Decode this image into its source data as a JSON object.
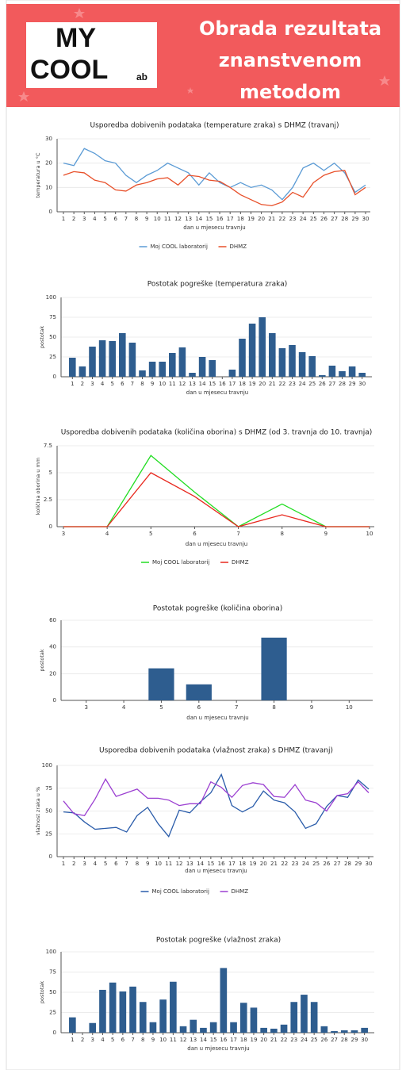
{
  "header": {
    "logo": [
      "MY",
      "COOL",
      "ab"
    ],
    "title_lines": [
      "Obrada rezultata",
      "znanstvenom",
      "metodom"
    ]
  },
  "chart_data": [
    {
      "type": "line",
      "title": "Usporedba dobivenih podataka (temperature zraka) s DHMZ (travanj)",
      "x_label": "dan u mjesecu travnju",
      "y_label": "temperatura u °C",
      "categories": [
        "1",
        "2",
        "3",
        "4",
        "5",
        "6",
        "7",
        "8",
        "9",
        "10",
        "11",
        "12",
        "13",
        "14",
        "15",
        "16",
        "17",
        "18",
        "19",
        "20",
        "21",
        "22",
        "23",
        "24",
        "25",
        "26",
        "27",
        "28",
        "29",
        "30"
      ],
      "series": [
        {
          "name": "Moj COOL laboratorij",
          "color": "#5b9bd5",
          "values": [
            20,
            19,
            26,
            24,
            21,
            20,
            15,
            12,
            15,
            17,
            20,
            18,
            16,
            11,
            16,
            12,
            10,
            12,
            10,
            11,
            9,
            5,
            10,
            18,
            20,
            17,
            20,
            16,
            8,
            11
          ]
        },
        {
          "name": "DHMZ",
          "color": "#e8502a",
          "values": [
            15,
            16.5,
            16,
            13,
            12,
            9,
            8.5,
            11,
            12,
            13.5,
            14,
            11,
            15,
            14.5,
            13,
            12.5,
            10,
            7,
            5,
            3,
            2.5,
            4,
            8,
            6,
            12,
            15,
            16.5,
            17,
            7,
            10
          ]
        }
      ],
      "ylim": [
        0,
        30
      ],
      "yticks": [
        0,
        10,
        20,
        30
      ],
      "grid": true,
      "legend": "bottom"
    },
    {
      "type": "bar",
      "title": "Postotak pogreške (temperatura zraka)",
      "x_label": "dan u mjesecu travnju",
      "y_label": "postotak",
      "categories": [
        "1",
        "2",
        "3",
        "4",
        "5",
        "6",
        "7",
        "8",
        "9",
        "10",
        "11",
        "12",
        "13",
        "14",
        "15",
        "16",
        "17",
        "18",
        "19",
        "20",
        "21",
        "22",
        "23",
        "24",
        "25",
        "26",
        "27",
        "28",
        "29",
        "30"
      ],
      "values": [
        24,
        13,
        38,
        46,
        45,
        55,
        43,
        8,
        19,
        19,
        30,
        37,
        5,
        25,
        21,
        0,
        9,
        48,
        67,
        75,
        55,
        36,
        40,
        31,
        26,
        2,
        14,
        7,
        13,
        5
      ],
      "color": "#2e5d8f",
      "ylim": [
        0,
        100
      ],
      "yticks": [
        0,
        25,
        50,
        75,
        100
      ],
      "grid": true
    },
    {
      "type": "line",
      "title": "Usporedba dobivenih podataka (količina oborina) s DHMZ (od 3. travnja do 10. travnja)",
      "x_label": "dan u mjesecu travnju",
      "y_label": "količina oborina u mm",
      "categories": [
        "3",
        "4",
        "5",
        "6",
        "7",
        "8",
        "9",
        "10"
      ],
      "series": [
        {
          "name": "Moj COOL laboratorij",
          "color": "#22dd22",
          "values": [
            0,
            0,
            6.6,
            3.2,
            0,
            2.1,
            0,
            0
          ]
        },
        {
          "name": "DHMZ",
          "color": "#e8281e",
          "values": [
            0,
            0,
            5,
            2.8,
            0,
            1.1,
            0,
            0
          ]
        }
      ],
      "ylim": [
        0,
        7.5
      ],
      "yticks": [
        0,
        2.5,
        5,
        7.5
      ],
      "grid": true,
      "legend": "bottom"
    },
    {
      "type": "bar",
      "title": "Postotak pogreške (količina oborina)",
      "x_label": "dan u mjesecu travnju",
      "y_label": "postotak",
      "categories": [
        "3",
        "4",
        "5",
        "6",
        "7",
        "8",
        "9",
        "10"
      ],
      "values": [
        0,
        0,
        24,
        12,
        0,
        47,
        0,
        0
      ],
      "color": "#2e5d8f",
      "ylim": [
        0,
        60
      ],
      "yticks": [
        0,
        20,
        40,
        60
      ],
      "grid": true
    },
    {
      "type": "line",
      "title": "Usporedba dobivenih podataka (vlažnost zraka) s DHMZ (travanj)",
      "x_label": "dan u mjesecu travnju",
      "y_label": "vlažnost zraka u %",
      "categories": [
        "1",
        "2",
        "3",
        "4",
        "5",
        "6",
        "7",
        "8",
        "9",
        "10",
        "11",
        "12",
        "13",
        "14",
        "15",
        "16",
        "17",
        "18",
        "19",
        "20",
        "21",
        "22",
        "23",
        "24",
        "25",
        "26",
        "27",
        "28",
        "29",
        "30"
      ],
      "series": [
        {
          "name": "Moj COOL laboratorij",
          "color": "#2a5caa",
          "values": [
            49,
            48,
            38,
            30,
            31,
            32,
            27,
            45,
            54,
            36,
            22,
            51,
            48,
            60,
            70,
            90,
            56,
            49,
            55,
            72,
            62,
            59,
            49,
            31,
            36,
            55,
            67,
            65,
            84,
            74
          ]
        },
        {
          "name": "DHMZ",
          "color": "#9b3fd1",
          "values": [
            61,
            47,
            45,
            63,
            85,
            66,
            70,
            74,
            64,
            64,
            62,
            56,
            58,
            58,
            82,
            76,
            65,
            78,
            81,
            79,
            66,
            65,
            79,
            62,
            59,
            50,
            67,
            69,
            82,
            70
          ]
        }
      ],
      "ylim": [
        0,
        100
      ],
      "yticks": [
        0,
        25,
        50,
        75,
        100
      ],
      "grid": true,
      "legend": "bottom"
    },
    {
      "type": "bar",
      "title": "Postotak pogreške (vlažnost zraka)",
      "x_label": "dan u mjesecu travnju",
      "y_label": "postotak",
      "categories": [
        "1",
        "2",
        "3",
        "4",
        "5",
        "6",
        "7",
        "8",
        "9",
        "10",
        "11",
        "12",
        "13",
        "14",
        "15",
        "16",
        "17",
        "18",
        "19",
        "20",
        "21",
        "22",
        "23",
        "24",
        "25",
        "26",
        "27",
        "28",
        "29",
        "30"
      ],
      "values": [
        19,
        0,
        12,
        53,
        62,
        51,
        57,
        38,
        13,
        41,
        63,
        8,
        16,
        6,
        13,
        80,
        13,
        37,
        31,
        6,
        5,
        10,
        38,
        47,
        38,
        8,
        2,
        3,
        3,
        6
      ],
      "color": "#2e5d8f",
      "ylim": [
        0,
        100
      ],
      "yticks": [
        0,
        25,
        50,
        75,
        100
      ],
      "grid": true
    }
  ]
}
